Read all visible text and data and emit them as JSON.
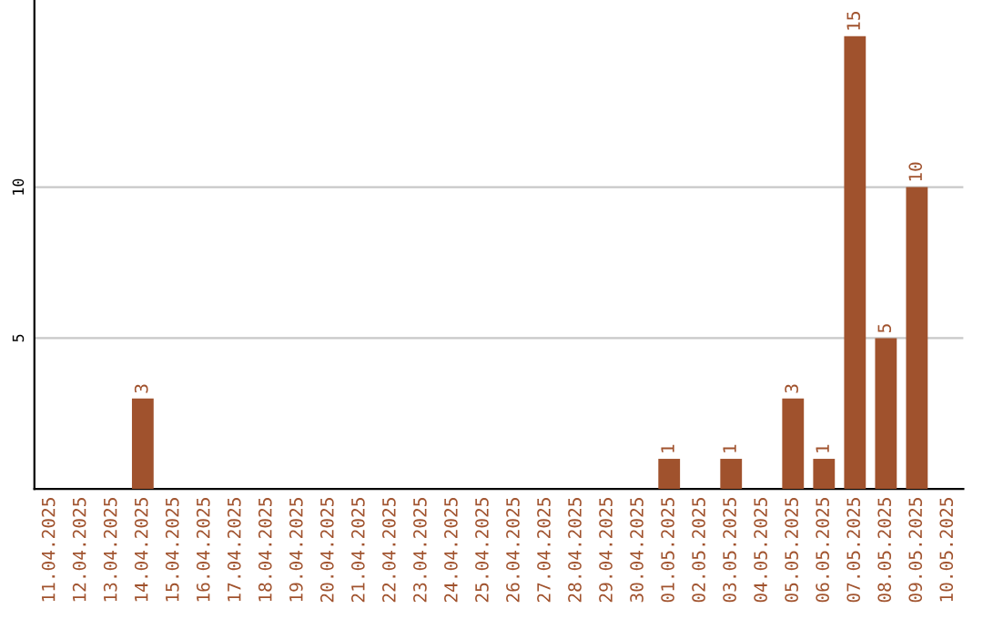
{
  "chart_data": {
    "type": "bar",
    "categories": [
      "11.04.2025",
      "12.04.2025",
      "13.04.2025",
      "14.04.2025",
      "15.04.2025",
      "16.04.2025",
      "17.04.2025",
      "18.04.2025",
      "19.04.2025",
      "20.04.2025",
      "21.04.2025",
      "22.04.2025",
      "23.04.2025",
      "24.04.2025",
      "25.04.2025",
      "26.04.2025",
      "27.04.2025",
      "28.04.2025",
      "29.04.2025",
      "30.04.2025",
      "01.05.2025",
      "02.05.2025",
      "03.05.2025",
      "04.05.2025",
      "05.05.2025",
      "06.05.2025",
      "07.05.2025",
      "08.05.2025",
      "09.05.2025",
      "10.05.2025"
    ],
    "values": [
      0,
      0,
      0,
      3,
      0,
      0,
      0,
      0,
      0,
      0,
      0,
      0,
      0,
      0,
      0,
      0,
      0,
      0,
      0,
      0,
      1,
      0,
      1,
      0,
      3,
      1,
      15,
      5,
      10,
      0
    ],
    "value_labels": [
      null,
      null,
      null,
      "3",
      null,
      null,
      null,
      null,
      null,
      null,
      null,
      null,
      null,
      null,
      null,
      null,
      null,
      null,
      null,
      null,
      "1",
      null,
      "1",
      null,
      "3",
      "1",
      "15",
      "5",
      "10",
      null
    ],
    "color": "#a0522d",
    "ylim": [
      0,
      16.2
    ],
    "yticks": [
      5,
      10
    ],
    "grid": "y"
  }
}
